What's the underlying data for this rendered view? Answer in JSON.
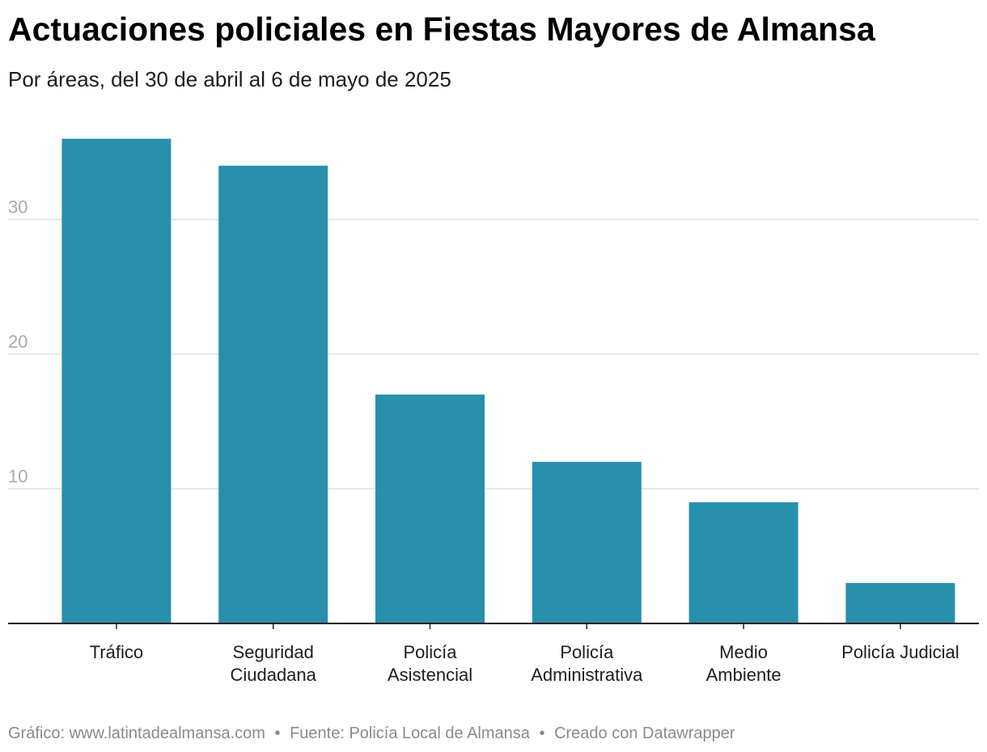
{
  "header": {
    "title": "Actuaciones policiales en Fiestas Mayores de Almansa",
    "subtitle": "Por áreas, del 30 de abril al 6 de mayo de 2025"
  },
  "footer": {
    "credit": "Gráfico: www.latintadealmansa.com",
    "source": "Fuente: Policía Local de Almansa",
    "tool": "Creado con Datawrapper",
    "separator": "•"
  },
  "colors": {
    "bar": "#2790ab",
    "grid": "#e0e0e0",
    "axis": "#222222",
    "tick_label": "#aaaaaa",
    "category_label": "#1d1d1d"
  },
  "chart_data": {
    "type": "bar",
    "categories": [
      [
        "Tráfico"
      ],
      [
        "Seguridad",
        "Ciudadana"
      ],
      [
        "Policía",
        "Asistencial"
      ],
      [
        "Policía",
        "Administrativa"
      ],
      [
        "Medio",
        "Ambiente"
      ],
      [
        "Policía Judicial"
      ]
    ],
    "values": [
      36,
      34,
      17,
      12,
      9,
      3
    ],
    "ylim": [
      0,
      36
    ],
    "yticks": [
      10,
      20,
      30
    ],
    "grid": true,
    "xlabel": "",
    "ylabel": ""
  }
}
